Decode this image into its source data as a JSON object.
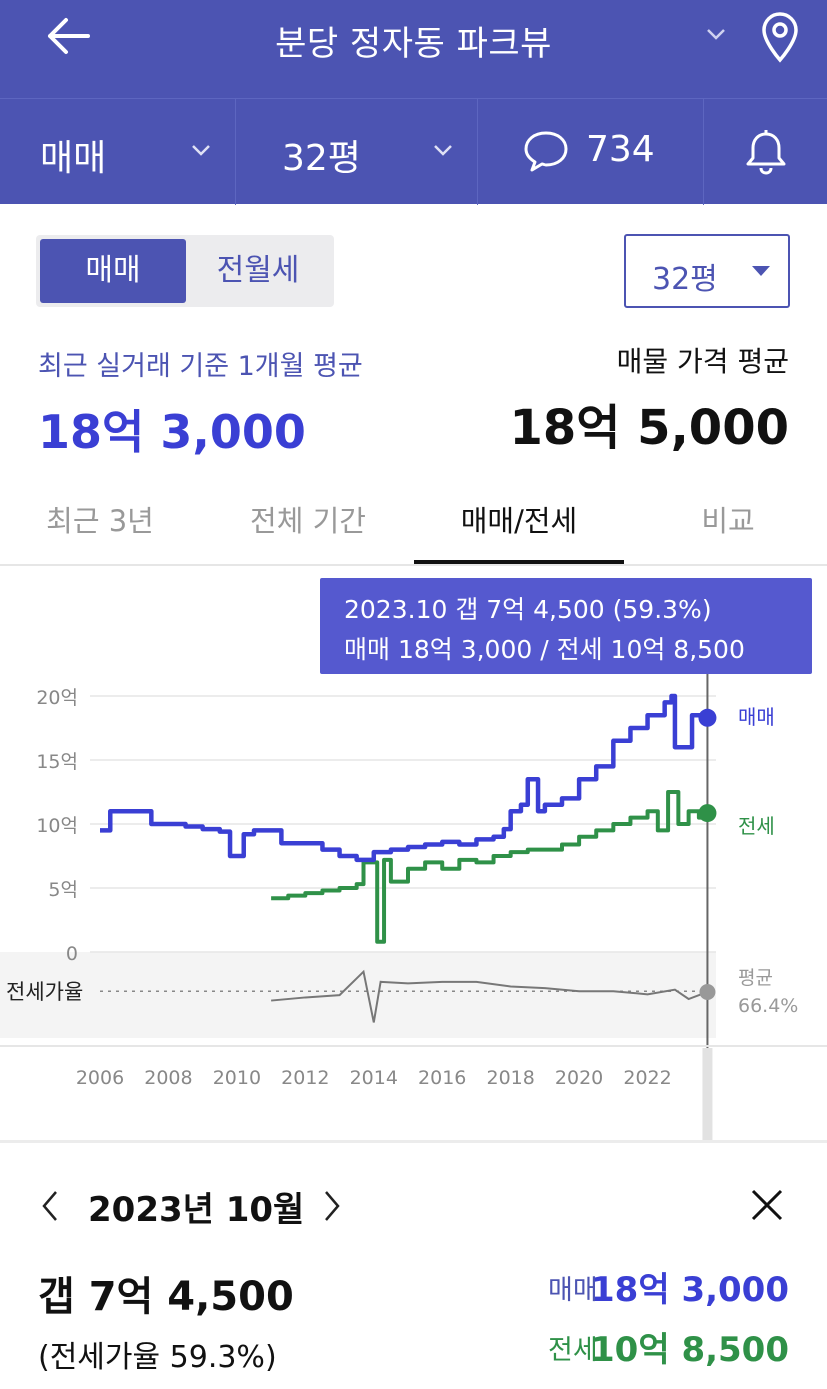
{
  "header": {
    "title": "분당 정자동 파크뷰",
    "back_icon": "back-arrow-icon",
    "location_icon": "location-pin-icon",
    "title_dropdown_icon": "chevron-down-icon"
  },
  "filter_bar": {
    "trade_type": "매매",
    "size": "32평",
    "comment_count": "734",
    "comment_icon": "chat-bubble-icon",
    "notification_icon": "bell-icon"
  },
  "segment": {
    "options": [
      "매매",
      "전월세"
    ],
    "selected": "매매"
  },
  "size_select": {
    "value": "32평"
  },
  "summary": {
    "recent_label": "최근 실거래 기준 1개월 평균",
    "recent_value": "18억 3,000",
    "listing_label": "매물 가격 평균",
    "listing_value": "18억 5,000"
  },
  "tabs": [
    {
      "label": "최근 3년"
    },
    {
      "label": "전체 기간"
    },
    {
      "label": "매매/전세"
    },
    {
      "label": "비교"
    }
  ],
  "active_tab": "매매/전세",
  "tooltip": {
    "line1": "2023.10  갭 7억 4,500 (59.3%)",
    "line2": "매매 18억 3,000 / 전세 10억 8,500"
  },
  "chart_data": {
    "type": "line",
    "x_tick_labels": [
      "2006",
      "2008",
      "2010",
      "2012",
      "2014",
      "2016",
      "2018",
      "2020",
      "2022"
    ],
    "y_tick_labels": [
      "20억",
      "15억",
      "10억",
      "5억",
      "0"
    ],
    "ylim": [
      0,
      20
    ],
    "ratio_label": "전세가율",
    "series": [
      {
        "name": "매매",
        "color": "#3a3fd4",
        "points": [
          [
            2006.0,
            9.5
          ],
          [
            2006.3,
            11.0
          ],
          [
            2007.0,
            11.0
          ],
          [
            2007.5,
            10.0
          ],
          [
            2008.0,
            10.0
          ],
          [
            2008.5,
            9.8
          ],
          [
            2009.0,
            9.6
          ],
          [
            2009.5,
            9.4
          ],
          [
            2009.8,
            7.5
          ],
          [
            2010.2,
            9.2
          ],
          [
            2010.5,
            9.5
          ],
          [
            2011.0,
            9.5
          ],
          [
            2011.3,
            8.5
          ],
          [
            2012.0,
            8.5
          ],
          [
            2012.5,
            8.0
          ],
          [
            2013.0,
            7.5
          ],
          [
            2013.5,
            7.2
          ],
          [
            2014.0,
            7.8
          ],
          [
            2014.5,
            8.0
          ],
          [
            2015.0,
            8.2
          ],
          [
            2015.5,
            8.4
          ],
          [
            2016.0,
            8.6
          ],
          [
            2016.5,
            8.4
          ],
          [
            2017.0,
            8.8
          ],
          [
            2017.5,
            9.0
          ],
          [
            2017.8,
            9.6
          ],
          [
            2018.0,
            11.0
          ],
          [
            2018.3,
            11.5
          ],
          [
            2018.5,
            13.5
          ],
          [
            2018.8,
            11.0
          ],
          [
            2019.0,
            11.5
          ],
          [
            2019.5,
            12.0
          ],
          [
            2020.0,
            13.5
          ],
          [
            2020.5,
            14.5
          ],
          [
            2021.0,
            16.5
          ],
          [
            2021.5,
            17.5
          ],
          [
            2022.0,
            18.5
          ],
          [
            2022.5,
            19.5
          ],
          [
            2022.7,
            20.0
          ],
          [
            2022.8,
            16.0
          ],
          [
            2023.2,
            16.0
          ],
          [
            2023.3,
            18.5
          ],
          [
            2023.6,
            18.0
          ],
          [
            2023.75,
            18.3
          ]
        ]
      },
      {
        "name": "전세",
        "color": "#2f9148",
        "points": [
          [
            2011.0,
            4.2
          ],
          [
            2011.5,
            4.4
          ],
          [
            2012.0,
            4.6
          ],
          [
            2012.5,
            4.8
          ],
          [
            2013.0,
            5.0
          ],
          [
            2013.5,
            5.3
          ],
          [
            2013.7,
            7.0
          ],
          [
            2014.0,
            7.0
          ],
          [
            2014.1,
            0.8
          ],
          [
            2014.3,
            7.2
          ],
          [
            2014.5,
            5.5
          ],
          [
            2015.0,
            6.5
          ],
          [
            2015.5,
            7.0
          ],
          [
            2016.0,
            6.5
          ],
          [
            2016.5,
            7.2
          ],
          [
            2017.0,
            7.0
          ],
          [
            2017.5,
            7.5
          ],
          [
            2018.0,
            7.8
          ],
          [
            2018.5,
            8.0
          ],
          [
            2019.0,
            8.0
          ],
          [
            2019.5,
            8.4
          ],
          [
            2020.0,
            9.0
          ],
          [
            2020.5,
            9.5
          ],
          [
            2021.0,
            10.0
          ],
          [
            2021.5,
            10.5
          ],
          [
            2022.0,
            11.0
          ],
          [
            2022.3,
            9.5
          ],
          [
            2022.6,
            12.5
          ],
          [
            2022.9,
            10.0
          ],
          [
            2023.2,
            11.0
          ],
          [
            2023.5,
            10.5
          ],
          [
            2023.75,
            10.85
          ]
        ]
      }
    ],
    "ratio_series": [
      [
        2011.0,
        0.48
      ],
      [
        2012.0,
        0.52
      ],
      [
        2013.0,
        0.55
      ],
      [
        2013.7,
        0.85
      ],
      [
        2014.0,
        0.2
      ],
      [
        2014.2,
        0.72
      ],
      [
        2015.0,
        0.7
      ],
      [
        2016.0,
        0.72
      ],
      [
        2017.0,
        0.72
      ],
      [
        2018.0,
        0.66
      ],
      [
        2019.0,
        0.64
      ],
      [
        2020.0,
        0.6
      ],
      [
        2021.0,
        0.6
      ],
      [
        2022.0,
        0.56
      ],
      [
        2022.8,
        0.62
      ],
      [
        2023.2,
        0.5
      ],
      [
        2023.75,
        0.59
      ]
    ],
    "end_labels": {
      "sale": "매매",
      "jeonse": "전세",
      "avg_label": "평균",
      "avg_value": "66.4%"
    },
    "selected_x": 2023.75
  },
  "detail": {
    "month": "2023년 10월",
    "gap": "갭 7억 4,500",
    "ratio": "(전세가율 59.3%)",
    "sale_label": "매매",
    "sale_value": "18억 3,000",
    "jeonse_label": "전세",
    "jeonse_value": "10억 8,500"
  },
  "colors": {
    "brand": "#4c54b2",
    "sale": "#3a3fd4",
    "jeonse": "#2f9148",
    "tooltip": "#5559cf"
  }
}
